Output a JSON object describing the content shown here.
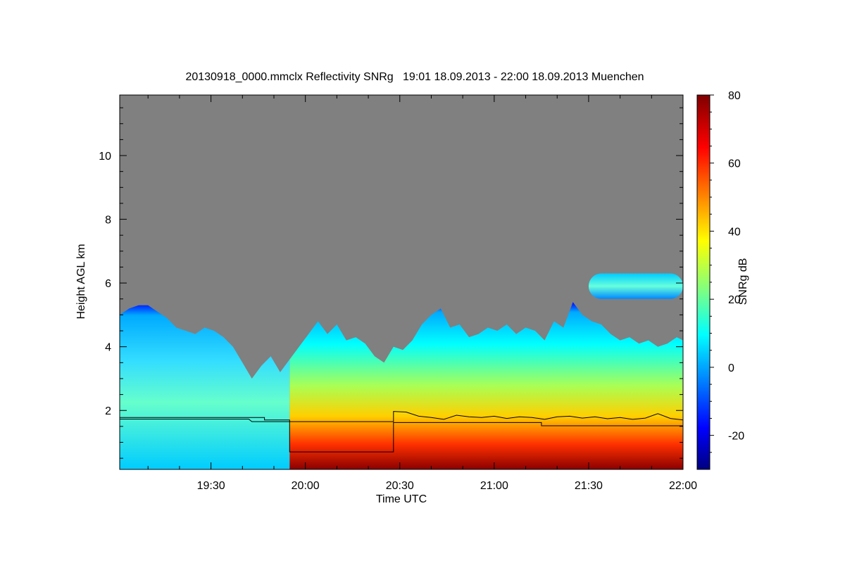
{
  "chart_data": {
    "type": "heatmap",
    "title": "20130918_0000.mmclx Reflectivity SNRg   19:01 18.09.2013 - 22:00 18.09.2013 Muenchen",
    "xlabel": "Time UTC",
    "ylabel": "Height AGL km",
    "x_range_minutes": [
      1141,
      1320
    ],
    "x_ticks": [
      {
        "minutes": 1170,
        "label": "19:30"
      },
      {
        "minutes": 1200,
        "label": "20:00"
      },
      {
        "minutes": 1230,
        "label": "20:30"
      },
      {
        "minutes": 1260,
        "label": "21:00"
      },
      {
        "minutes": 1290,
        "label": "21:30"
      },
      {
        "minutes": 1320,
        "label": "22:00"
      }
    ],
    "ylim": [
      0.15,
      11.9
    ],
    "y_ticks": [
      {
        "value": 2,
        "label": "2"
      },
      {
        "value": 4,
        "label": "4"
      },
      {
        "value": 6,
        "label": "6"
      },
      {
        "value": 8,
        "label": "8"
      },
      {
        "value": 10,
        "label": "10"
      }
    ],
    "background_color": "#808080",
    "colorbar": {
      "label": "SNRg dB",
      "range": [
        -30,
        80
      ],
      "ticks": [
        {
          "value": -20,
          "label": "-20"
        },
        {
          "value": 0,
          "label": "0"
        },
        {
          "value": 20,
          "label": "20"
        },
        {
          "value": 40,
          "label": "40"
        },
        {
          "value": 60,
          "label": "60"
        },
        {
          "value": 80,
          "label": "80"
        }
      ]
    },
    "echo_top_km": [
      [
        1141,
        5.0
      ],
      [
        1144,
        5.2
      ],
      [
        1147,
        5.3
      ],
      [
        1150,
        5.3
      ],
      [
        1153,
        5.1
      ],
      [
        1156,
        4.9
      ],
      [
        1159,
        4.6
      ],
      [
        1162,
        4.5
      ],
      [
        1165,
        4.4
      ],
      [
        1168,
        4.6
      ],
      [
        1171,
        4.5
      ],
      [
        1174,
        4.3
      ],
      [
        1177,
        4.0
      ],
      [
        1180,
        3.5
      ],
      [
        1183,
        3.0
      ],
      [
        1186,
        3.4
      ],
      [
        1189,
        3.7
      ],
      [
        1192,
        3.2
      ],
      [
        1195,
        3.6
      ],
      [
        1198,
        4.0
      ],
      [
        1201,
        4.4
      ],
      [
        1204,
        4.8
      ],
      [
        1207,
        4.4
      ],
      [
        1210,
        4.7
      ],
      [
        1213,
        4.2
      ],
      [
        1216,
        4.3
      ],
      [
        1219,
        4.1
      ],
      [
        1222,
        3.7
      ],
      [
        1225,
        3.5
      ],
      [
        1228,
        4.0
      ],
      [
        1231,
        3.9
      ],
      [
        1234,
        4.2
      ],
      [
        1237,
        4.7
      ],
      [
        1240,
        5.0
      ],
      [
        1243,
        5.2
      ],
      [
        1246,
        4.6
      ],
      [
        1249,
        4.7
      ],
      [
        1252,
        4.3
      ],
      [
        1255,
        4.4
      ],
      [
        1258,
        4.6
      ],
      [
        1261,
        4.5
      ],
      [
        1264,
        4.7
      ],
      [
        1267,
        4.4
      ],
      [
        1270,
        4.6
      ],
      [
        1273,
        4.5
      ],
      [
        1276,
        4.2
      ],
      [
        1279,
        4.8
      ],
      [
        1282,
        4.6
      ],
      [
        1285,
        5.4
      ],
      [
        1288,
        5.0
      ],
      [
        1291,
        4.8
      ],
      [
        1294,
        4.7
      ],
      [
        1297,
        4.4
      ],
      [
        1300,
        4.2
      ],
      [
        1303,
        4.3
      ],
      [
        1306,
        4.1
      ],
      [
        1309,
        4.2
      ],
      [
        1312,
        4.0
      ],
      [
        1315,
        4.1
      ],
      [
        1318,
        4.3
      ],
      [
        1320,
        4.2
      ]
    ],
    "upper_cloud_layer": {
      "x_start": 1290,
      "x_end": 1320,
      "bottom_km": 5.5,
      "top_km": 6.3
    },
    "line_series": [
      {
        "style": "stepped",
        "points": [
          [
            1141,
            1.78
          ],
          [
            1187,
            1.78
          ],
          [
            1187,
            1.7
          ],
          [
            1195,
            1.7
          ],
          [
            1195,
            0.7
          ],
          [
            1228,
            0.7
          ],
          [
            1228,
            1.62
          ],
          [
            1275,
            1.62
          ],
          [
            1275,
            1.52
          ],
          [
            1320,
            1.52
          ]
        ]
      },
      {
        "style": "line",
        "points": [
          [
            1141,
            1.73
          ],
          [
            1182,
            1.73
          ],
          [
            1183,
            1.65
          ],
          [
            1228,
            1.65
          ],
          [
            1228,
            1.97
          ],
          [
            1232,
            1.95
          ],
          [
            1236,
            1.82
          ],
          [
            1240,
            1.78
          ],
          [
            1244,
            1.72
          ],
          [
            1248,
            1.85
          ],
          [
            1252,
            1.8
          ],
          [
            1256,
            1.78
          ],
          [
            1260,
            1.82
          ],
          [
            1264,
            1.75
          ],
          [
            1268,
            1.8
          ],
          [
            1272,
            1.78
          ],
          [
            1276,
            1.72
          ],
          [
            1280,
            1.8
          ],
          [
            1284,
            1.82
          ],
          [
            1288,
            1.76
          ],
          [
            1292,
            1.8
          ],
          [
            1296,
            1.74
          ],
          [
            1300,
            1.78
          ],
          [
            1304,
            1.72
          ],
          [
            1308,
            1.76
          ],
          [
            1312,
            1.9
          ],
          [
            1316,
            1.75
          ],
          [
            1320,
            1.7
          ]
        ]
      }
    ]
  }
}
